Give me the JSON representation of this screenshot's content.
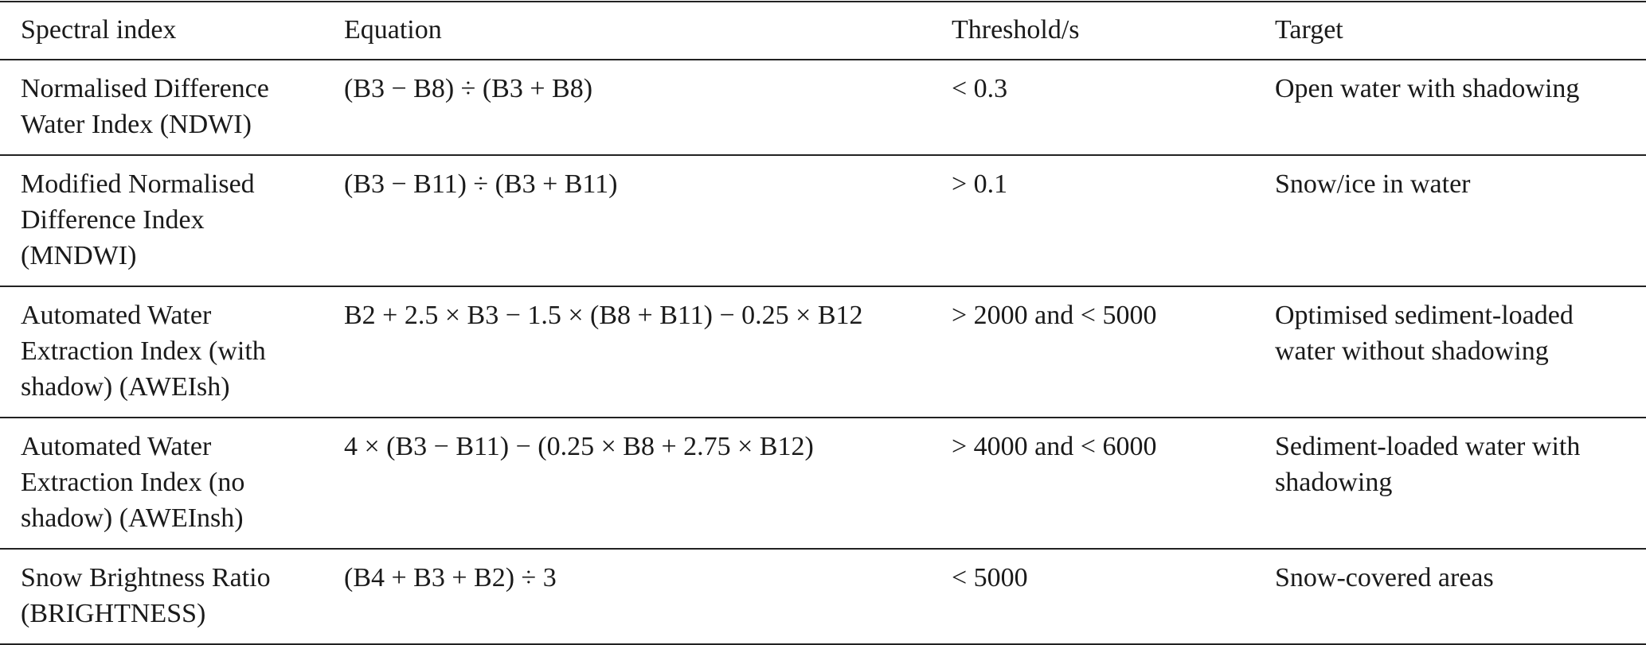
{
  "table": {
    "headers": [
      "Spectral index",
      "Equation",
      "Threshold/s",
      "Target"
    ],
    "rows": [
      [
        [
          "Normalised Difference",
          "Water Index (NDWI)"
        ],
        [
          "(B3 − B8) ÷ (B3 + B8)"
        ],
        [
          "< 0.3"
        ],
        [
          "Open water with shadowing"
        ]
      ],
      [
        [
          "Modified Normalised",
          "Difference Index",
          "(MNDWI)"
        ],
        [
          "(B3 − B11) ÷ (B3 + B11)"
        ],
        [
          "> 0.1"
        ],
        [
          "Snow/ice in water"
        ]
      ],
      [
        [
          "Automated Water",
          "Extraction Index (with",
          "shadow) (AWEIsh)"
        ],
        [
          "B2 + 2.5 × B3 − 1.5 × (B8 + B11) − 0.25 × B12"
        ],
        [
          "> 2000 and < 5000"
        ],
        [
          "Optimised sediment-loaded",
          "water without shadowing"
        ]
      ],
      [
        [
          "Automated Water",
          "Extraction Index (no",
          "shadow) (AWEInsh)"
        ],
        [
          "4 × (B3 − B11) − (0.25 × B8 + 2.75 × B12)"
        ],
        [
          "> 4000 and < 6000"
        ],
        [
          "Sediment-loaded water with",
          "shadowing"
        ]
      ],
      [
        [
          "Snow Brightness Ratio",
          "(BRIGHTNESS)"
        ],
        [
          "(B4 + B3 + B2) ÷ 3"
        ],
        [
          "< 5000"
        ],
        [
          "Snow-covered areas"
        ]
      ]
    ]
  }
}
